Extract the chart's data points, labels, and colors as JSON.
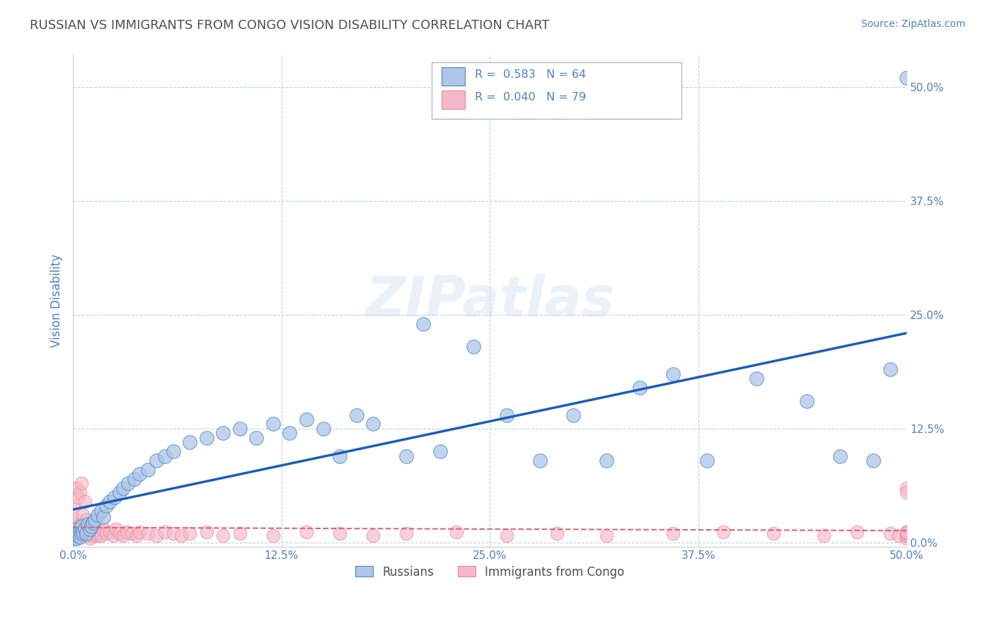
{
  "title": "RUSSIAN VS IMMIGRANTS FROM CONGO VISION DISABILITY CORRELATION CHART",
  "source_text": "Source: ZipAtlas.com",
  "ylabel": "Vision Disability",
  "xlim": [
    0.0,
    0.5
  ],
  "ylim": [
    -0.005,
    0.535
  ],
  "xticks": [
    0.0,
    0.125,
    0.25,
    0.375,
    0.5
  ],
  "yticks": [
    0.0,
    0.125,
    0.25,
    0.375,
    0.5
  ],
  "xticklabels": [
    "0.0%",
    "12.5%",
    "25.0%",
    "37.5%",
    "50.0%"
  ],
  "yticklabels": [
    "0.0%",
    "12.5%",
    "25.0%",
    "37.5%",
    "50.0%"
  ],
  "russian_color": "#aec6e8",
  "congo_color": "#f5b8c8",
  "russian_edge_color": "#4f86c6",
  "congo_edge_color": "#e8889a",
  "russian_line_color": "#1a5eb8",
  "congo_line_color": "#d46a7a",
  "background_color": "#ffffff",
  "grid_color": "#c0d0e0",
  "title_color": "#505050",
  "axis_label_color": "#5080c0",
  "tick_color": "#5080c0",
  "legend_label1": "Russians",
  "legend_label2": "Immigrants from Congo",
  "watermark": "ZIPatlas",
  "russian_R": 0.583,
  "russian_N": 64,
  "congo_R": 0.04,
  "congo_N": 79,
  "russian_x": [
    0.001,
    0.001,
    0.001,
    0.002,
    0.002,
    0.002,
    0.003,
    0.003,
    0.004,
    0.004,
    0.005,
    0.005,
    0.006,
    0.007,
    0.008,
    0.009,
    0.01,
    0.011,
    0.012,
    0.013,
    0.015,
    0.017,
    0.018,
    0.02,
    0.022,
    0.025,
    0.028,
    0.03,
    0.033,
    0.037,
    0.04,
    0.045,
    0.05,
    0.055,
    0.06,
    0.07,
    0.08,
    0.09,
    0.1,
    0.11,
    0.12,
    0.13,
    0.14,
    0.15,
    0.16,
    0.17,
    0.18,
    0.2,
    0.21,
    0.22,
    0.24,
    0.26,
    0.28,
    0.3,
    0.32,
    0.34,
    0.36,
    0.38,
    0.41,
    0.44,
    0.46,
    0.48,
    0.49,
    0.5
  ],
  "russian_y": [
    0.005,
    0.008,
    0.01,
    0.005,
    0.01,
    0.015,
    0.008,
    0.012,
    0.006,
    0.015,
    0.01,
    0.018,
    0.012,
    0.015,
    0.01,
    0.02,
    0.015,
    0.018,
    0.022,
    0.025,
    0.03,
    0.035,
    0.028,
    0.04,
    0.045,
    0.05,
    0.055,
    0.06,
    0.065,
    0.07,
    0.075,
    0.08,
    0.09,
    0.095,
    0.1,
    0.11,
    0.115,
    0.12,
    0.125,
    0.115,
    0.13,
    0.12,
    0.135,
    0.125,
    0.095,
    0.14,
    0.13,
    0.095,
    0.24,
    0.1,
    0.215,
    0.14,
    0.09,
    0.14,
    0.09,
    0.17,
    0.185,
    0.09,
    0.18,
    0.155,
    0.095,
    0.09,
    0.19,
    0.51
  ],
  "congo_x": [
    0.001,
    0.001,
    0.001,
    0.002,
    0.002,
    0.002,
    0.002,
    0.003,
    0.003,
    0.003,
    0.004,
    0.004,
    0.004,
    0.005,
    0.005,
    0.005,
    0.006,
    0.006,
    0.007,
    0.007,
    0.008,
    0.008,
    0.009,
    0.01,
    0.01,
    0.011,
    0.012,
    0.013,
    0.014,
    0.015,
    0.016,
    0.017,
    0.018,
    0.02,
    0.022,
    0.024,
    0.026,
    0.028,
    0.03,
    0.032,
    0.035,
    0.038,
    0.04,
    0.045,
    0.05,
    0.055,
    0.06,
    0.065,
    0.07,
    0.08,
    0.09,
    0.1,
    0.12,
    0.14,
    0.16,
    0.18,
    0.2,
    0.23,
    0.26,
    0.29,
    0.32,
    0.36,
    0.39,
    0.42,
    0.45,
    0.47,
    0.49,
    0.495,
    0.5,
    0.5,
    0.5,
    0.5,
    0.5,
    0.5,
    0.5,
    0.5,
    0.5,
    0.5,
    0.5
  ],
  "congo_y": [
    0.01,
    0.02,
    0.04,
    0.008,
    0.015,
    0.025,
    0.06,
    0.01,
    0.018,
    0.05,
    0.008,
    0.015,
    0.055,
    0.01,
    0.02,
    0.065,
    0.008,
    0.03,
    0.01,
    0.045,
    0.008,
    0.025,
    0.015,
    0.005,
    0.02,
    0.01,
    0.008,
    0.015,
    0.01,
    0.008,
    0.012,
    0.008,
    0.015,
    0.01,
    0.012,
    0.008,
    0.015,
    0.01,
    0.008,
    0.012,
    0.01,
    0.008,
    0.012,
    0.01,
    0.008,
    0.012,
    0.01,
    0.008,
    0.01,
    0.012,
    0.008,
    0.01,
    0.008,
    0.012,
    0.01,
    0.008,
    0.01,
    0.012,
    0.008,
    0.01,
    0.008,
    0.01,
    0.012,
    0.01,
    0.008,
    0.012,
    0.01,
    0.008,
    0.01,
    0.008,
    0.012,
    0.06,
    0.01,
    0.008,
    0.005,
    0.055,
    0.008,
    0.01,
    0.012
  ]
}
